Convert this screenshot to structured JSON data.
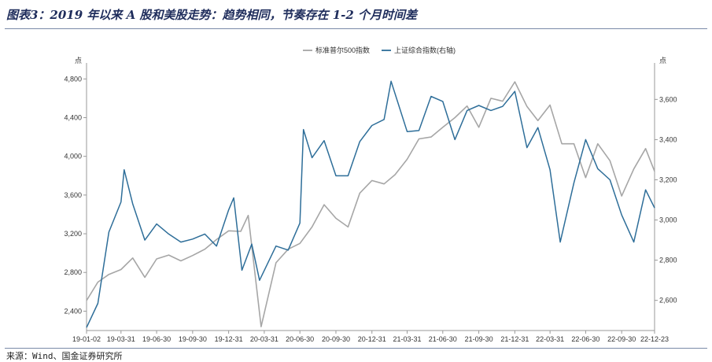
{
  "figure": {
    "title": "图表3：2019 年以来 A 股和美股走势：趋势相同，节奏存在 1-2 个月时间差",
    "source": "来源：Wind、国金证券研究所"
  },
  "colors": {
    "sp500": "#a6a6a6",
    "shanghai": "#2e6e99",
    "axis": "#999999",
    "title": "#1f2d5c"
  },
  "chart_data": {
    "type": "line",
    "title": "",
    "left_axis_unit": "点",
    "right_axis_unit": "点",
    "y_left_lim": [
      2200,
      4900
    ],
    "y_left_ticks": [
      2400,
      2800,
      3200,
      3600,
      4000,
      4400,
      4800
    ],
    "y_left_tick_labels": [
      "2,400",
      "2,800",
      "3,200",
      "3,600",
      "4,000",
      "4,400",
      "4,800"
    ],
    "y_right_lim": [
      2450,
      3750
    ],
    "y_right_ticks": [
      2600,
      2800,
      3000,
      3200,
      3400,
      3600
    ],
    "y_right_tick_labels": [
      "2,600",
      "2,800",
      "3,000",
      "3,200",
      "3,400",
      "3,600"
    ],
    "x_tick_labels": [
      "19-01-02",
      "19-03-31",
      "19-06-30",
      "19-09-30",
      "19-12-31",
      "20-03-31",
      "20-06-30",
      "20-09-30",
      "20-12-31",
      "21-03-31",
      "21-06-30",
      "21-09-30",
      "21-12-31",
      "22-03-31",
      "22-06-30",
      "22-09-30",
      "22-12-23"
    ],
    "legend": {
      "position": "top-center"
    },
    "series": [
      {
        "name": "标准普尔500指数",
        "axis": "left",
        "x": [
          "19-01-02",
          "19-01-31",
          "19-02-28",
          "19-03-31",
          "19-04-30",
          "19-05-31",
          "19-06-30",
          "19-07-31",
          "19-08-31",
          "19-09-30",
          "19-10-31",
          "19-11-30",
          "19-12-31",
          "20-01-31",
          "20-02-19",
          "20-03-23",
          "20-04-30",
          "20-05-31",
          "20-06-30",
          "20-07-31",
          "20-08-31",
          "20-09-30",
          "20-10-31",
          "20-11-30",
          "20-12-31",
          "21-01-31",
          "21-02-28",
          "21-03-31",
          "21-04-30",
          "21-05-31",
          "21-06-30",
          "21-07-31",
          "21-08-31",
          "21-09-30",
          "21-10-31",
          "21-11-30",
          "21-12-31",
          "22-01-31",
          "22-02-28",
          "22-03-31",
          "22-04-30",
          "22-05-31",
          "22-06-30",
          "22-07-31",
          "22-08-31",
          "22-09-30",
          "22-10-31",
          "22-11-30",
          "22-12-23"
        ],
        "values": [
          2510,
          2700,
          2780,
          2830,
          2950,
          2750,
          2940,
          2980,
          2920,
          2975,
          3040,
          3140,
          3230,
          3225,
          3390,
          2240,
          2900,
          3040,
          3100,
          3270,
          3500,
          3360,
          3270,
          3620,
          3750,
          3715,
          3810,
          3970,
          4180,
          4200,
          4300,
          4400,
          4520,
          4300,
          4600,
          4570,
          4770,
          4515,
          4370,
          4530,
          4130,
          4130,
          3780,
          4130,
          3955,
          3590,
          3870,
          4080,
          3845
        ]
      },
      {
        "name": "上证综合指数(右轴)",
        "axis": "right",
        "x": [
          "19-01-02",
          "19-01-31",
          "19-02-28",
          "19-03-31",
          "19-04-08",
          "19-04-30",
          "19-05-31",
          "19-06-30",
          "19-07-31",
          "19-08-31",
          "19-09-30",
          "19-10-31",
          "19-11-30",
          "19-12-31",
          "20-01-13",
          "20-02-03",
          "20-02-28",
          "20-03-19",
          "20-04-30",
          "20-05-31",
          "20-06-30",
          "20-07-09",
          "20-07-31",
          "20-08-31",
          "20-09-30",
          "20-10-31",
          "20-11-30",
          "20-12-31",
          "21-01-31",
          "21-02-18",
          "21-03-31",
          "21-04-30",
          "21-05-31",
          "21-06-30",
          "21-07-31",
          "21-08-31",
          "21-09-30",
          "21-10-31",
          "21-11-30",
          "21-12-31",
          "22-01-31",
          "22-02-28",
          "22-03-31",
          "22-04-26",
          "22-05-31",
          "22-06-30",
          "22-07-31",
          "22-08-31",
          "22-09-30",
          "22-10-31",
          "22-11-30",
          "22-12-23"
        ],
        "values": [
          2465,
          2585,
          2940,
          3090,
          3250,
          3080,
          2900,
          2980,
          2930,
          2890,
          2905,
          2930,
          2870,
          3050,
          3110,
          2750,
          2880,
          2700,
          2870,
          2850,
          2985,
          3450,
          3310,
          3395,
          3220,
          3220,
          3390,
          3470,
          3500,
          3690,
          3440,
          3445,
          3615,
          3590,
          3400,
          3545,
          3570,
          3545,
          3565,
          3640,
          3360,
          3460,
          3250,
          2890,
          3185,
          3400,
          3255,
          3200,
          3025,
          2890,
          3150,
          3060
        ]
      }
    ]
  }
}
